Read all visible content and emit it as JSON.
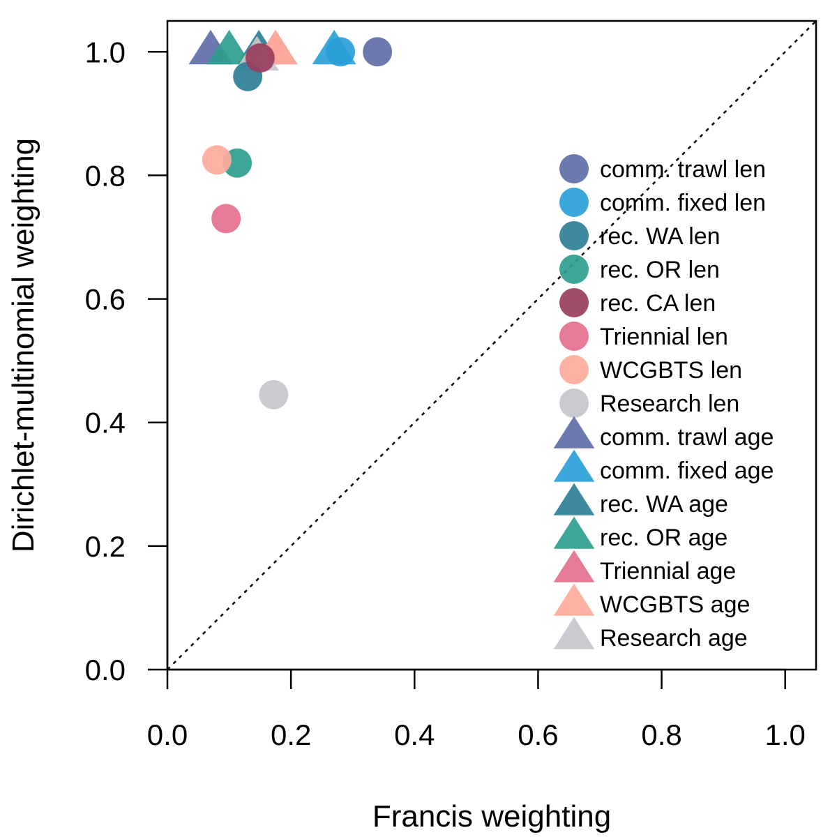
{
  "chart_data": {
    "type": "scatter",
    "xlabel": "Francis weighting",
    "ylabel": "Dirichlet-multinomial weighting",
    "xlim": [
      0,
      1.05
    ],
    "ylim": [
      0,
      1.05
    ],
    "x_ticks": [
      "0.0",
      "0.2",
      "0.4",
      "0.6",
      "0.8",
      "1.0"
    ],
    "y_ticks": [
      "0.0",
      "0.2",
      "0.4",
      "0.6",
      "0.8",
      "1.0"
    ],
    "reference_line": "y = x (dotted)",
    "grid": false,
    "legend_position": "right",
    "series": [
      {
        "name": "comm. trawl len",
        "marker": "circle",
        "color": "#5E6EA8",
        "x": 0.34,
        "y": 1.0
      },
      {
        "name": "comm. fixed len",
        "marker": "circle",
        "color": "#2A9FD8",
        "x": 0.28,
        "y": 1.0
      },
      {
        "name": "rec. WA len",
        "marker": "circle",
        "color": "#2F7F97",
        "x": 0.13,
        "y": 0.96
      },
      {
        "name": "rec. OR len",
        "marker": "circle",
        "color": "#2E9E8E",
        "x": 0.113,
        "y": 0.82
      },
      {
        "name": "rec. CA len",
        "marker": "circle",
        "color": "#9A3D5E",
        "x": 0.15,
        "y": 0.99
      },
      {
        "name": "Triennial len",
        "marker": "circle",
        "color": "#E4708E",
        "x": 0.095,
        "y": 0.73
      },
      {
        "name": "WCGBTS len",
        "marker": "circle",
        "color": "#FFAB9C",
        "x": 0.08,
        "y": 0.825
      },
      {
        "name": "Research len",
        "marker": "circle",
        "color": "#C4C7CD",
        "x": 0.172,
        "y": 0.445
      },
      {
        "name": "comm. trawl age",
        "marker": "triangle",
        "color": "#5E6EA8",
        "x": 0.07,
        "y": 1.0
      },
      {
        "name": "comm. fixed age",
        "marker": "triangle",
        "color": "#2A9FD8",
        "x": 0.27,
        "y": 1.0
      },
      {
        "name": "rec. WA age",
        "marker": "triangle",
        "color": "#2F7F97",
        "x": 0.148,
        "y": 1.0
      },
      {
        "name": "rec. OR age",
        "marker": "triangle",
        "color": "#2E9E8E",
        "x": 0.1,
        "y": 1.0
      },
      {
        "name": "Triennial age",
        "marker": "triangle",
        "color": "#E4708E",
        "x": 0.175,
        "y": 1.0
      },
      {
        "name": "WCGBTS age",
        "marker": "triangle",
        "color": "#FFAB9C",
        "x": 0.175,
        "y": 1.0
      },
      {
        "name": "Research age",
        "marker": "triangle",
        "color": "#C4C7CD",
        "x": 0.145,
        "y": 0.99
      }
    ]
  }
}
